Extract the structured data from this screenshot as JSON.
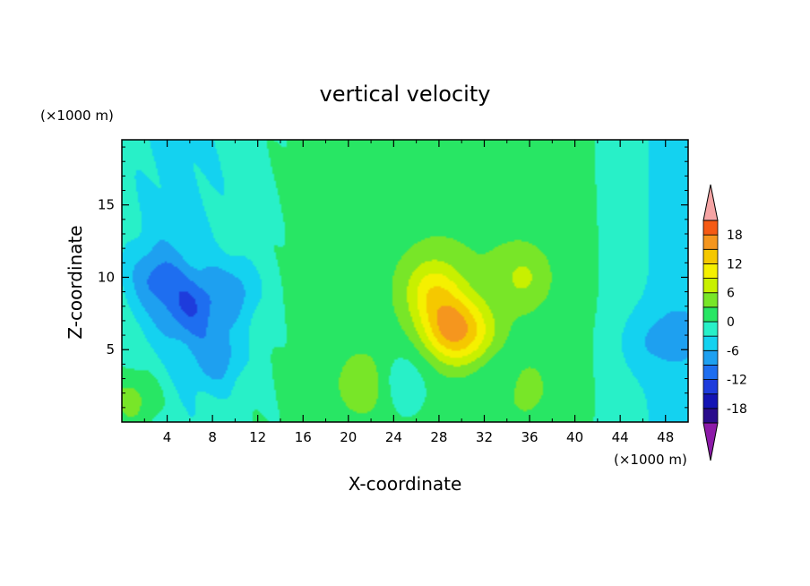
{
  "chart_data": {
    "type": "heatmap",
    "title": "vertical velocity",
    "xlabel": "X-coordinate",
    "ylabel": "Z-coordinate",
    "x_unit": "(×1000 m)",
    "y_unit": "(×1000 m)",
    "xlim": [
      0,
      50
    ],
    "ylim": [
      0,
      19.5
    ],
    "x_ticks": [
      "4",
      "8",
      "12",
      "16",
      "20",
      "24",
      "28",
      "32",
      "36",
      "40",
      "44",
      "48"
    ],
    "y_ticks": [
      "5",
      "10",
      "15"
    ],
    "colorbar": {
      "tick_labels": [
        "18",
        "12",
        "6",
        "0",
        "-6",
        "-12",
        "-18"
      ],
      "levels": [
        -21,
        -18,
        -15,
        -12,
        -9,
        -6,
        -3,
        0,
        3,
        6,
        9,
        12,
        15,
        18,
        21
      ],
      "over_color": "#f5a4a4",
      "under_color": "#8c1aa8",
      "colors": [
        "#2a0c8c",
        "#1414b4",
        "#1e3cdc",
        "#1e6ef0",
        "#1ea0f0",
        "#14d2f0",
        "#28f0c8",
        "#28e664",
        "#78e628",
        "#c8f000",
        "#f5f000",
        "#f5c800",
        "#f5961e",
        "#f55a14",
        "#dc1e14",
        "#b40a0a"
      ]
    },
    "features": [
      {
        "x": 29,
        "y": 6.5,
        "value": 15
      },
      {
        "x": 27.5,
        "y": 9,
        "value": 10
      },
      {
        "x": 31,
        "y": 6,
        "value": 8
      },
      {
        "x": 35.5,
        "y": 10,
        "value": 6
      },
      {
        "x": 21.5,
        "y": 2.6,
        "value": 7
      },
      {
        "x": 35.2,
        "y": 2.4,
        "value": 6
      },
      {
        "x": 1.2,
        "y": 1.6,
        "value": 6
      },
      {
        "x": 6,
        "y": 8,
        "value": -10
      },
      {
        "x": 3,
        "y": 10,
        "value": -8
      },
      {
        "x": 10,
        "y": 9,
        "value": -7
      },
      {
        "x": 8.5,
        "y": 4.5,
        "value": -7
      },
      {
        "x": 49.5,
        "y": 6,
        "value": -5
      },
      {
        "x": 46,
        "y": 5.5,
        "value": -4
      },
      {
        "x": 24.5,
        "y": 2.8,
        "value": -4
      },
      {
        "x": 33.5,
        "y": 3,
        "value": -3
      }
    ]
  }
}
